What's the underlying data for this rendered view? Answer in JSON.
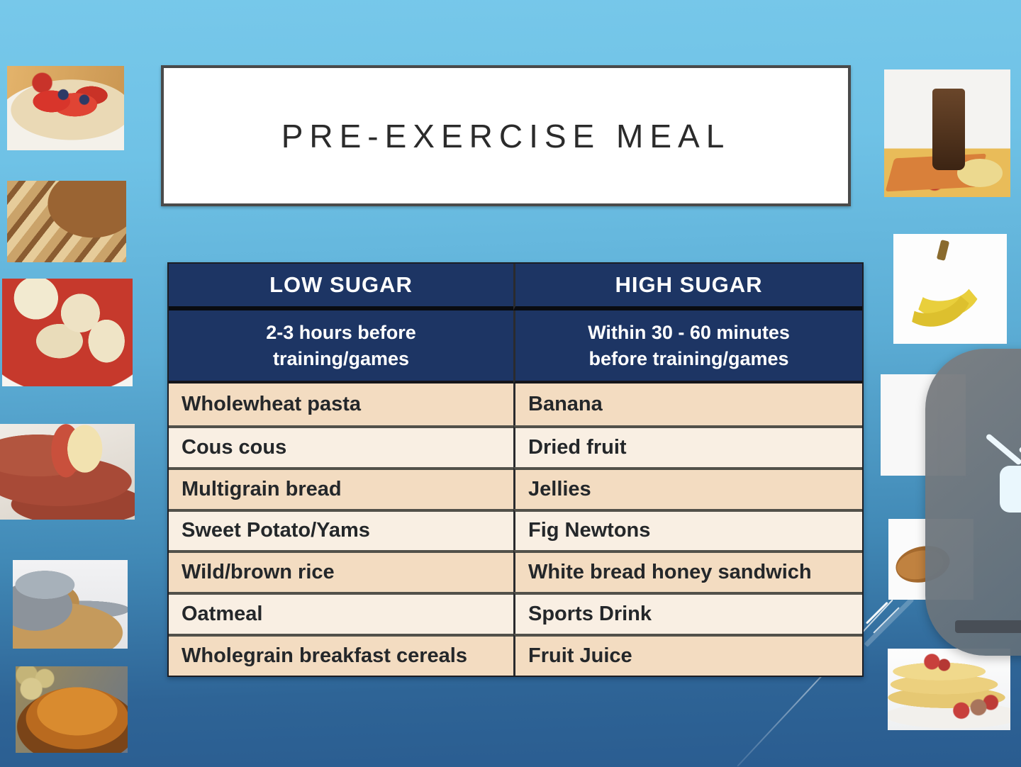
{
  "slide": {
    "title": "PRE-EXERCISE MEAL",
    "table": {
      "columns": [
        {
          "header": "LOW SUGAR",
          "subheader_lines": [
            "2-3 hours before",
            "training/games"
          ]
        },
        {
          "header": "HIGH SUGAR",
          "subheader_lines": [
            "Within 30 - 60 minutes",
            "before training/games"
          ]
        }
      ],
      "rows": [
        [
          "Wholewheat pasta",
          "Banana"
        ],
        [
          "Cous cous",
          "Dried fruit"
        ],
        [
          "Multigrain bread",
          "Jellies"
        ],
        [
          "Sweet Potato/Yams",
          "Fig Newtons"
        ],
        [
          "Wild/brown rice",
          "White bread honey sandwich"
        ],
        [
          "Oatmeal",
          "Sports Drink"
        ],
        [
          "Wholegrain breakfast cereals",
          "Fruit Juice"
        ]
      ]
    },
    "images_left": [
      "porridge-with-berries",
      "sliced-wholegrain-bread",
      "pasta-with-tomato-sauce",
      "sweet-potatoes",
      "wholegrain-jar-spill",
      "peanut-butter-toast"
    ],
    "images_right": [
      "chocolate-milkshake",
      "bananas",
      "milk-glass-partial",
      "croissant-partial",
      "pancakes-with-raspberries"
    ],
    "overlay": {
      "icon": "screen-mirroring-tv-icon"
    },
    "colors": {
      "header_navy": "#1d3564",
      "row_dark_tan": "#f3dcc1",
      "row_light_cream": "#f9efe3",
      "background_top": "#77c8ea",
      "background_bottom": "#2a5c90",
      "overlay_gray": "#6c757e",
      "title_text": "#2b2b2b"
    }
  }
}
